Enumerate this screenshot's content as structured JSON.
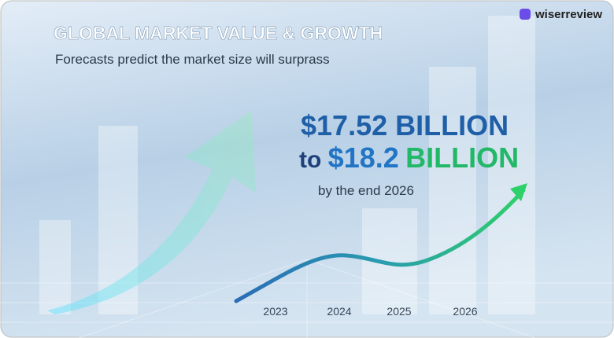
{
  "brand": "wiserreview",
  "header": {
    "title": "GLOBAL MARKET VALUE & GROWTH",
    "subtitle": "Forecasts predict the market size will surprass"
  },
  "headline": {
    "line1": "$17.52 BILLION",
    "line2_prefix": "to",
    "line2_value": "$18.2",
    "line2_unit": "BILLION"
  },
  "note": "by the end 2026",
  "axis": {
    "labels": [
      "2023",
      "2024",
      "2025",
      "2026"
    ]
  }
}
